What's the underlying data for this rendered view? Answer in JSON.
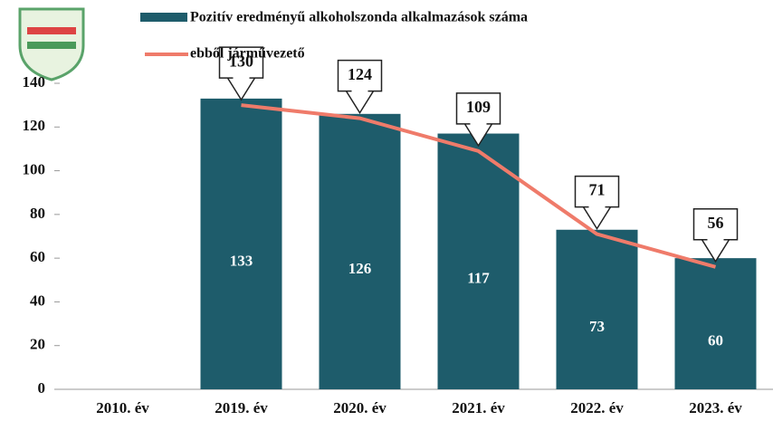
{
  "chart_data": {
    "type": "bar",
    "categories": [
      "2010. év",
      "2019. év",
      "2020. év",
      "2021. év",
      "2022. év",
      "2023. év"
    ],
    "series": [
      {
        "name": "Pozitív eredményű alkoholszonda alkalmazások száma",
        "type": "bar",
        "color": "#1e5c6b",
        "values": [
          null,
          133,
          126,
          117,
          73,
          60
        ]
      },
      {
        "name": "ebből járművezető",
        "type": "line",
        "color": "#ef7b6a",
        "values": [
          null,
          130,
          124,
          109,
          71,
          56
        ]
      }
    ],
    "ylim": [
      0,
      140
    ],
    "yticks": [
      0,
      20,
      40,
      60,
      80,
      100,
      120,
      140
    ],
    "grid": false
  }
}
